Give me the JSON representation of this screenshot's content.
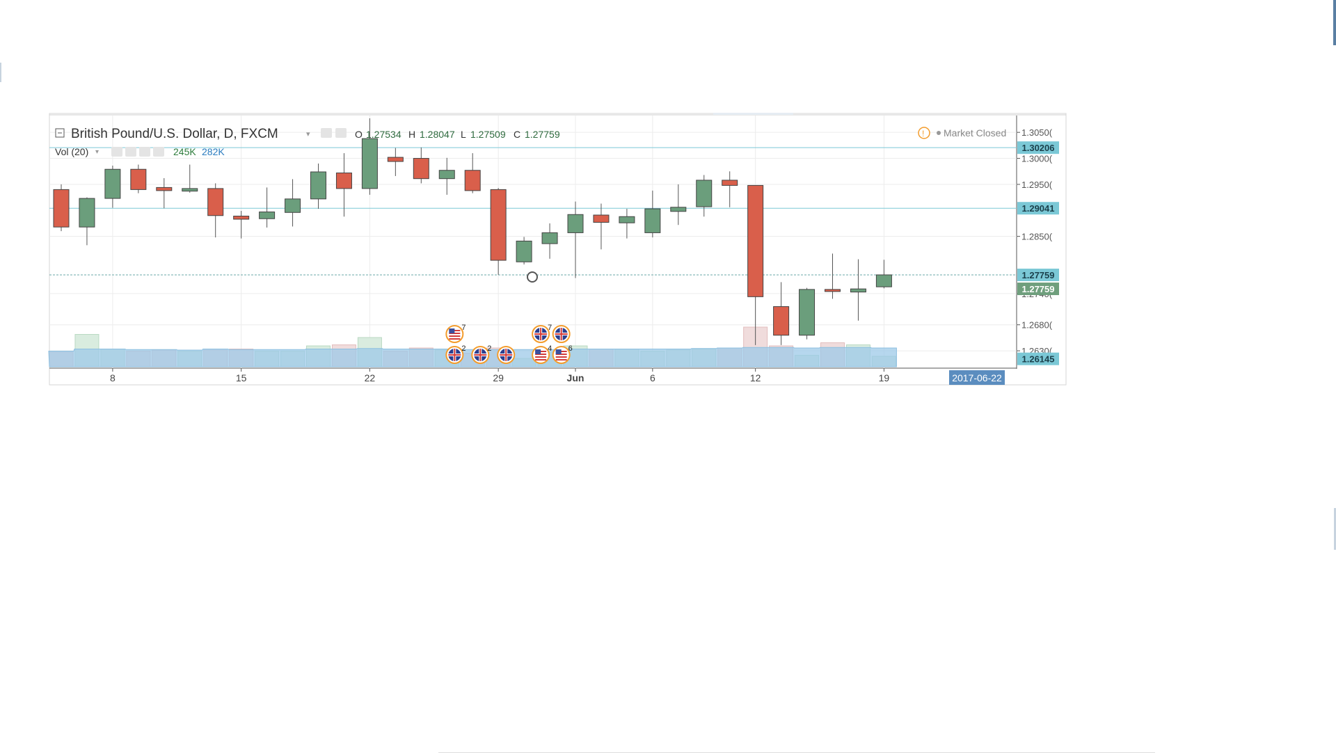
{
  "legend": {
    "symbol": "British Pound/U.S. Dollar, D, FXCM",
    "o_label": "O",
    "o_value": "1.27534",
    "h_label": "H",
    "h_value": "1.28047",
    "l_label": "L",
    "l_value": "1.27509",
    "c_label": "C",
    "c_value": "1.27759",
    "vol_label": "Vol (20)",
    "vol_value": "245K",
    "vol_ma_value": "282K",
    "status": "Market Closed"
  },
  "price_markers": [
    {
      "price": 1.30206,
      "label": "1.30206",
      "color": "#7bc8d6"
    },
    {
      "price": 1.29041,
      "label": "1.29041",
      "color": "#7bc8d6"
    },
    {
      "price": 1.27759,
      "label": "1.27759",
      "color": "#7bc8d6"
    },
    {
      "price": 1.27759,
      "label": "1.27759",
      "color": "#6f9f7d"
    },
    {
      "price": 1.26145,
      "label": "1.26145",
      "color": "#7bc8d6"
    }
  ],
  "cursor_date_label": "2017-06-22",
  "events": [
    {
      "icon": "us-flag-icon",
      "count": "7",
      "day": 16,
      "row": "upper"
    },
    {
      "icon": "uk-flag-icon",
      "count": "2",
      "day": 16,
      "row": "lower"
    },
    {
      "icon": "uk-flag-icon",
      "count": "2",
      "day": 17,
      "row": "lower"
    },
    {
      "icon": "uk-flag-icon",
      "count": "",
      "day": 18,
      "row": "lower"
    },
    {
      "icon": "uk-flag-icon",
      "count": "7",
      "day": 19,
      "row": "upper"
    },
    {
      "icon": "us-flag-icon",
      "count": "4",
      "day": 19,
      "row": "lower"
    },
    {
      "icon": "uk-flag-icon",
      "count": "",
      "day": 20,
      "row": "upper"
    },
    {
      "icon": "us-flag-icon",
      "count": "6",
      "day": 20,
      "row": "lower"
    }
  ],
  "colors": {
    "up": "#6b9e7c",
    "down": "#d95f4b",
    "grid": "#ececec",
    "axis_text": "#555555",
    "price_line": "#7bc8d6",
    "date_badge": "#5b8dbf"
  },
  "chart_data": {
    "type": "candlestick",
    "title": "British Pound/U.S. Dollar, D, FXCM",
    "y_range": [
      1.2602,
      1.3077
    ],
    "y_ticks": [
      {
        "value": 1.305,
        "label": "1.3050("
      },
      {
        "value": 1.3,
        "label": "1.3000("
      },
      {
        "value": 1.295,
        "label": "1.2950("
      },
      {
        "value": 1.285,
        "label": "1.2850("
      },
      {
        "value": 1.274,
        "label": "1.2740("
      },
      {
        "value": 1.268,
        "label": "1.2680("
      },
      {
        "value": 1.263,
        "label": "1.2630("
      }
    ],
    "x_ticks": [
      {
        "day": 2,
        "label": "8"
      },
      {
        "day": 7,
        "label": "15"
      },
      {
        "day": 12,
        "label": "22"
      },
      {
        "day": 17,
        "label": "29"
      },
      {
        "day": 20,
        "label": "Jun"
      },
      {
        "day": 23,
        "label": "6"
      },
      {
        "day": 27,
        "label": "12"
      },
      {
        "day": 32,
        "label": "19"
      }
    ],
    "candles": [
      {
        "date": "2017-05-04",
        "open": 1.294,
        "high": 1.295,
        "low": 1.286,
        "close": 1.2868
      },
      {
        "date": "2017-05-05",
        "open": 1.2868,
        "high": 1.2925,
        "low": 1.2833,
        "close": 1.2923
      },
      {
        "date": "2017-05-08",
        "open": 1.2923,
        "high": 1.2986,
        "low": 1.2905,
        "close": 1.2979
      },
      {
        "date": "2017-05-09",
        "open": 1.2979,
        "high": 1.2988,
        "low": 1.2933,
        "close": 1.294
      },
      {
        "date": "2017-05-10",
        "open": 1.2944,
        "high": 1.2962,
        "low": 1.2904,
        "close": 1.2938
      },
      {
        "date": "2017-05-11",
        "open": 1.2937,
        "high": 1.2988,
        "low": 1.2934,
        "close": 1.2942
      },
      {
        "date": "2017-05-12",
        "open": 1.2942,
        "high": 1.2952,
        "low": 1.2848,
        "close": 1.289
      },
      {
        "date": "2017-05-15",
        "open": 1.2889,
        "high": 1.2899,
        "low": 1.2846,
        "close": 1.2883
      },
      {
        "date": "2017-05-16",
        "open": 1.2884,
        "high": 1.2944,
        "low": 1.2867,
        "close": 1.2897
      },
      {
        "date": "2017-05-17",
        "open": 1.2896,
        "high": 1.296,
        "low": 1.2869,
        "close": 1.2922
      },
      {
        "date": "2017-05-18",
        "open": 1.2922,
        "high": 1.299,
        "low": 1.2903,
        "close": 1.2974
      },
      {
        "date": "2017-05-19",
        "open": 1.2972,
        "high": 1.301,
        "low": 1.2888,
        "close": 1.2942
      },
      {
        "date": "2017-05-22",
        "open": 1.2942,
        "high": 1.3077,
        "low": 1.293,
        "close": 1.3038
      },
      {
        "date": "2017-05-23",
        "open": 1.3002,
        "high": 1.302,
        "low": 1.2966,
        "close": 1.2994
      },
      {
        "date": "2017-05-24",
        "open": 1.3,
        "high": 1.3021,
        "low": 1.2952,
        "close": 1.2961
      },
      {
        "date": "2017-05-25",
        "open": 1.2961,
        "high": 1.3001,
        "low": 1.293,
        "close": 1.2977
      },
      {
        "date": "2017-05-26",
        "open": 1.2977,
        "high": 1.301,
        "low": 1.2933,
        "close": 1.2938
      },
      {
        "date": "2017-05-29",
        "open": 1.294,
        "high": 1.2943,
        "low": 1.2776,
        "close": 1.2804
      },
      {
        "date": "2017-05-30",
        "open": 1.2801,
        "high": 1.2849,
        "low": 1.2796,
        "close": 1.2841
      },
      {
        "date": "2017-05-31",
        "open": 1.2836,
        "high": 1.2875,
        "low": 1.2807,
        "close": 1.2857
      },
      {
        "date": "2017-06-01",
        "open": 1.2857,
        "high": 1.2917,
        "low": 1.277,
        "close": 1.2892
      },
      {
        "date": "2017-06-02",
        "open": 1.2891,
        "high": 1.2913,
        "low": 1.2825,
        "close": 1.2877
      },
      {
        "date": "2017-06-05",
        "open": 1.2876,
        "high": 1.2903,
        "low": 1.2846,
        "close": 1.2888
      },
      {
        "date": "2017-06-06",
        "open": 1.2857,
        "high": 1.2938,
        "low": 1.2848,
        "close": 1.2903
      },
      {
        "date": "2017-06-07",
        "open": 1.2898,
        "high": 1.295,
        "low": 1.2872,
        "close": 1.2906
      },
      {
        "date": "2017-06-08",
        "open": 1.2907,
        "high": 1.2968,
        "low": 1.2888,
        "close": 1.2958
      },
      {
        "date": "2017-06-09",
        "open": 1.2958,
        "high": 1.2975,
        "low": 1.2906,
        "close": 1.2948
      },
      {
        "date": "2017-06-12",
        "open": 1.2948,
        "high": 1.2948,
        "low": 1.2641,
        "close": 1.2734
      },
      {
        "date": "2017-06-13",
        "open": 1.2715,
        "high": 1.2762,
        "low": 1.2641,
        "close": 1.266
      },
      {
        "date": "2017-06-14",
        "open": 1.266,
        "high": 1.2751,
        "low": 1.2652,
        "close": 1.2748
      },
      {
        "date": "2017-06-15",
        "open": 1.2748,
        "high": 1.2817,
        "low": 1.273,
        "close": 1.2747
      },
      {
        "date": "2017-06-16",
        "open": 1.2743,
        "high": 1.2806,
        "low": 1.2688,
        "close": 1.2749
      },
      {
        "date": "2017-06-19",
        "open": 1.2753,
        "high": 1.2805,
        "low": 1.275,
        "close": 1.2776
      }
    ],
    "volume": {
      "label": "Vol (20)",
      "max_shown": 1.0,
      "bars_rel": [
        0.28,
        0.62,
        0.34,
        0.3,
        0.32,
        0.3,
        0.32,
        0.34,
        0.3,
        0.3,
        0.4,
        0.42,
        0.56,
        0.3,
        0.36,
        0.32,
        0.26,
        0.36,
        0.16,
        0.28,
        0.4,
        0.34,
        0.34,
        0.3,
        0.32,
        0.34,
        0.36,
        0.76,
        0.4,
        0.22,
        0.46,
        0.42,
        0.2
      ],
      "ma_rel": [
        0.3,
        0.34,
        0.34,
        0.33,
        0.33,
        0.32,
        0.34,
        0.33,
        0.33,
        0.33,
        0.34,
        0.34,
        0.35,
        0.34,
        0.34,
        0.34,
        0.33,
        0.33,
        0.33,
        0.33,
        0.34,
        0.34,
        0.34,
        0.34,
        0.34,
        0.35,
        0.36,
        0.37,
        0.37,
        0.36,
        0.37,
        0.37,
        0.36
      ]
    }
  }
}
